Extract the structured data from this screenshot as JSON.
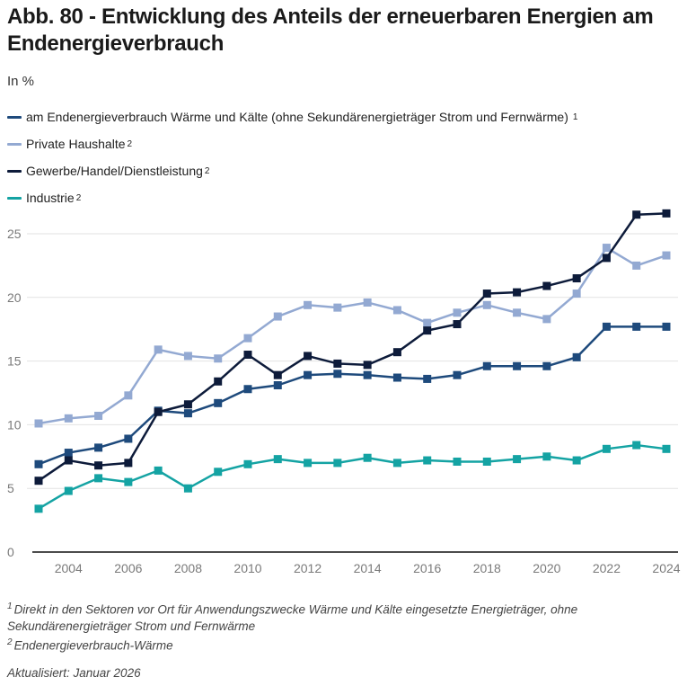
{
  "header": {
    "title": "Abb. 80 - Entwicklung des Anteils der erneuerbaren Energien am Endenergieverbrauch",
    "subtitle": "In %"
  },
  "legend": [
    {
      "label": "am Endenergieverbrauch Wärme und Kälte (ohne Sekundärenergieträger Strom und Fernwärme)",
      "note": "1",
      "color": "#1e4a7c"
    },
    {
      "label": "Private Haushalte",
      "note": "2",
      "color": "#93a9d2"
    },
    {
      "label": "Gewerbe/Handel/Dienstleistung",
      "note": "2",
      "color": "#0d1b3a"
    },
    {
      "label": "Industrie",
      "note": "2",
      "color": "#14a3a3"
    }
  ],
  "footnotes": [
    {
      "marker": "1",
      "text": "Direkt in den Sektoren vor Ort für Anwendungszwecke Wärme und Kälte eingesetzte Energieträger, ohne Sekundärenergieträger Strom und Fernwärme"
    },
    {
      "marker": "2",
      "text": "Endenergieverbrauch-Wärme"
    }
  ],
  "updated": "Aktualisiert: Januar 2026",
  "chart_data": {
    "type": "line",
    "title": "Abb. 80 - Entwicklung des Anteils der erneuerbaren Energien am Endenergieverbrauch",
    "ylabel": "In %",
    "xlabel": "",
    "x": [
      2003,
      2004,
      2005,
      2006,
      2007,
      2008,
      2009,
      2010,
      2011,
      2012,
      2013,
      2014,
      2015,
      2016,
      2017,
      2018,
      2019,
      2020,
      2021,
      2022,
      2023,
      2024
    ],
    "xlim": [
      2003,
      2024
    ],
    "ylim": [
      0,
      27
    ],
    "x_ticks": [
      "2004",
      "2006",
      "2008",
      "2010",
      "2012",
      "2014",
      "2016",
      "2018",
      "2020",
      "2022",
      "2024"
    ],
    "y_ticks": [
      "0",
      "5",
      "10",
      "15",
      "20",
      "25"
    ],
    "grid": true,
    "legend_position": "top-left",
    "marker": "square",
    "series": [
      {
        "name": "am Endenergieverbrauch Wärme und Kälte (ohne Sekundärenergieträger Strom und Fernwärme)",
        "color": "#1e4a7c",
        "values": [
          6.9,
          7.8,
          8.2,
          8.9,
          11.1,
          10.9,
          11.7,
          12.8,
          13.1,
          13.9,
          14.0,
          13.9,
          13.7,
          13.6,
          13.9,
          14.6,
          14.6,
          14.6,
          15.3,
          17.7,
          17.7,
          17.7
        ]
      },
      {
        "name": "Private Haushalte",
        "color": "#93a9d2",
        "values": [
          10.1,
          10.5,
          10.7,
          12.3,
          15.9,
          15.4,
          15.2,
          16.8,
          18.5,
          19.4,
          19.2,
          19.6,
          19.0,
          18.0,
          18.8,
          19.4,
          18.8,
          18.3,
          20.3,
          23.9,
          22.5,
          23.3
        ]
      },
      {
        "name": "Gewerbe/Handel/Dienstleistung",
        "color": "#0d1b3a",
        "values": [
          5.6,
          7.2,
          6.8,
          7.0,
          11.0,
          11.6,
          13.4,
          15.5,
          13.9,
          15.4,
          14.8,
          14.7,
          15.7,
          17.4,
          17.9,
          20.3,
          20.4,
          20.9,
          21.5,
          23.1,
          26.5,
          26.6
        ]
      },
      {
        "name": "Industrie",
        "color": "#14a3a3",
        "values": [
          3.4,
          4.8,
          5.8,
          5.5,
          6.4,
          5.0,
          6.3,
          6.9,
          7.3,
          7.0,
          7.0,
          7.4,
          7.0,
          7.2,
          7.1,
          7.1,
          7.3,
          7.5,
          7.2,
          8.1,
          8.4,
          8.1
        ]
      }
    ]
  }
}
